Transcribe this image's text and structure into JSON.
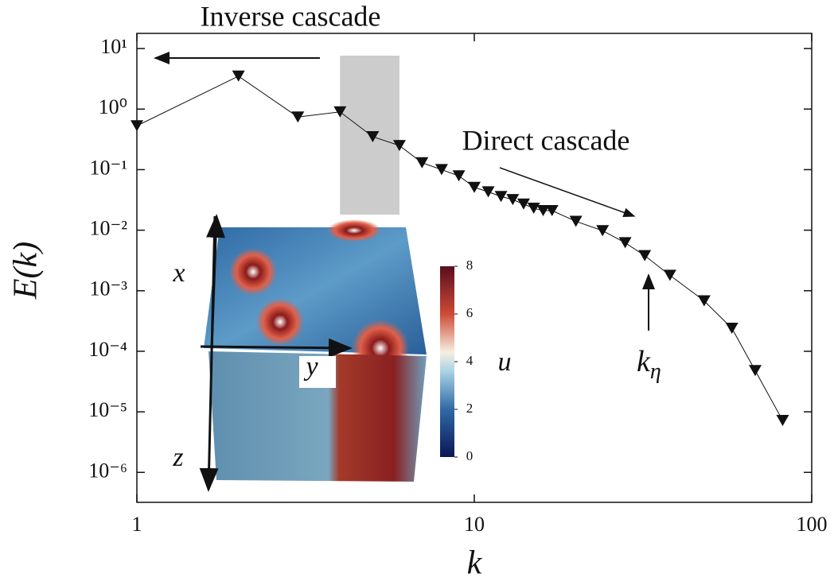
{
  "chart_data": {
    "type": "line",
    "x_label": "k",
    "y_label": "E(k)",
    "x": [
      1,
      2,
      3,
      4,
      5,
      6,
      7,
      8,
      9,
      10,
      11,
      12,
      13,
      14,
      15,
      16,
      17,
      20,
      24,
      28,
      32,
      38,
      48,
      58,
      68,
      82
    ],
    "series": [
      {
        "color": "#111111",
        "values": [
          0.53,
          3.5,
          0.74,
          0.9,
          0.35,
          0.25,
          0.13,
          0.1,
          0.079,
          0.051,
          0.043,
          0.036,
          0.032,
          0.027,
          0.023,
          0.021,
          0.021,
          0.014,
          0.0098,
          0.0062,
          0.0038,
          0.0018,
          0.00068,
          0.00024,
          4.8e-05,
          7.2e-06
        ]
      }
    ],
    "xscale": "log",
    "yscale": "log",
    "xlim": [
      1,
      100
    ],
    "ylim": [
      3.2e-07,
      17.8
    ],
    "xticks": [
      1,
      10,
      100
    ],
    "yticks": [
      {
        "value": 10,
        "label": "10¹"
      },
      {
        "value": 1,
        "label": "10⁰"
      },
      {
        "value": 0.1,
        "label": "10⁻¹"
      },
      {
        "value": 0.01,
        "label": "10⁻²"
      },
      {
        "value": 0.001,
        "label": "10⁻³"
      },
      {
        "value": 0.0001,
        "label": "10⁻⁴"
      },
      {
        "value": 1e-05,
        "label": "10⁻⁵"
      },
      {
        "value": 1e-06,
        "label": "10⁻⁶"
      }
    ],
    "shaded_band": {
      "x": [
        4,
        6
      ],
      "color": "#cccccc"
    },
    "annotations": {
      "inverse": "Inverse cascade",
      "direct": "Direct cascade",
      "k_eta": {
        "base": "k",
        "sub": "η"
      }
    },
    "inset": {
      "axis_labels": {
        "x": "x",
        "y": "y",
        "z": "z"
      },
      "colorbar_label": "u",
      "clim": [
        0,
        8
      ],
      "colorbar_ticks": [
        0,
        2,
        4,
        6,
        8
      ]
    }
  }
}
